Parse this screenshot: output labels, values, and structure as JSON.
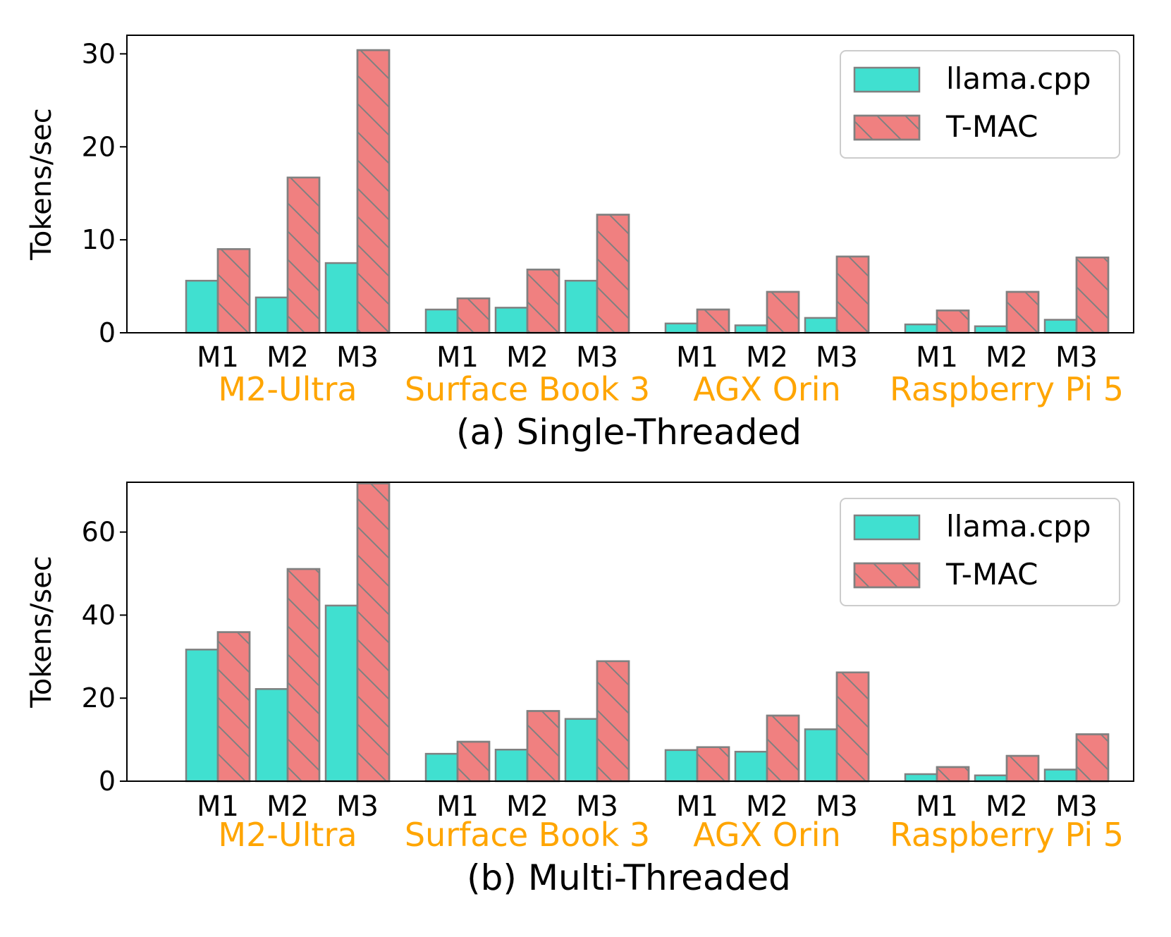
{
  "chart_data": [
    {
      "type": "bar",
      "title": "(a) Single-Threaded",
      "ylabel": "Tokens/sec",
      "ylim": [
        0,
        32
      ],
      "yticks": [
        0,
        10,
        20,
        30
      ],
      "groups": [
        {
          "name": "M2-Ultra",
          "categories": [
            "M1",
            "M2",
            "M3"
          ]
        },
        {
          "name": "Surface Book 3",
          "categories": [
            "M1",
            "M2",
            "M3"
          ]
        },
        {
          "name": "AGX Orin",
          "categories": [
            "M1",
            "M2",
            "M3"
          ]
        },
        {
          "name": "Raspberry Pi 5",
          "categories": [
            "M1",
            "M2",
            "M3"
          ]
        }
      ],
      "series": [
        {
          "name": "llama.cpp",
          "color": "#40E0D0",
          "hatch": false,
          "values": [
            5.6,
            3.8,
            7.5,
            2.5,
            2.7,
            5.6,
            1.0,
            0.8,
            1.6,
            0.9,
            0.7,
            1.4
          ]
        },
        {
          "name": "T-MAC",
          "color": "#F08080",
          "hatch": true,
          "values": [
            9.0,
            16.7,
            30.4,
            3.7,
            6.8,
            12.7,
            2.5,
            4.4,
            8.2,
            2.4,
            4.4,
            8.1
          ]
        }
      ],
      "legend": "top-right",
      "grid": false
    },
    {
      "type": "bar",
      "title": "(b) Multi-Threaded",
      "ylabel": "Tokens/sec",
      "ylim": [
        0,
        72
      ],
      "yticks": [
        0,
        20,
        40,
        60
      ],
      "groups": [
        {
          "name": "M2-Ultra",
          "categories": [
            "M1",
            "M2",
            "M3"
          ]
        },
        {
          "name": "Surface Book 3",
          "categories": [
            "M1",
            "M2",
            "M3"
          ]
        },
        {
          "name": "AGX Orin",
          "categories": [
            "M1",
            "M2",
            "M3"
          ]
        },
        {
          "name": "Raspberry Pi 5",
          "categories": [
            "M1",
            "M2",
            "M3"
          ]
        }
      ],
      "series": [
        {
          "name": "llama.cpp",
          "color": "#40E0D0",
          "hatch": false,
          "values": [
            31.7,
            22.2,
            42.3,
            6.6,
            7.6,
            15.0,
            7.5,
            7.1,
            12.5,
            1.7,
            1.4,
            2.8
          ]
        },
        {
          "name": "T-MAC",
          "color": "#F08080",
          "hatch": true,
          "values": [
            35.9,
            51.1,
            71.7,
            9.5,
            16.9,
            28.9,
            8.2,
            15.8,
            26.2,
            3.4,
            6.1,
            11.3
          ]
        }
      ],
      "legend": "top-right",
      "grid": false
    }
  ]
}
